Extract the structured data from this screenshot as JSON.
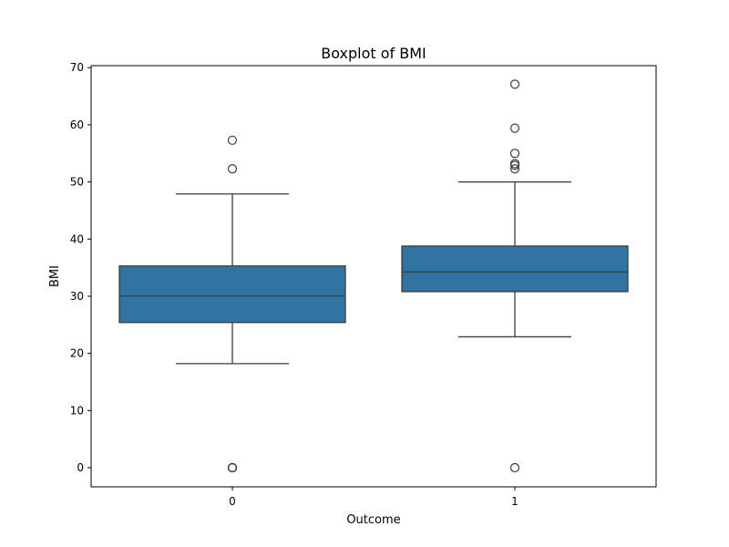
{
  "chart_data": {
    "type": "box",
    "title": "Boxplot of BMI",
    "xlabel": "Outcome",
    "ylabel": "BMI",
    "categories": [
      "0",
      "1"
    ],
    "ylim": [
      -3.35,
      70.35
    ],
    "yticks": [
      0,
      10,
      20,
      30,
      40,
      50,
      60,
      70
    ],
    "grid": false,
    "legend": "none",
    "box_color": "#3274a1",
    "line_color": "#3d3d3d",
    "boxes": [
      {
        "category": "0",
        "whisker_low": 18.2,
        "q1": 25.4,
        "median": 30.05,
        "q3": 35.3,
        "whisker_high": 47.9,
        "outliers": [
          0,
          0,
          0,
          0,
          52.3,
          57.3
        ]
      },
      {
        "category": "1",
        "whisker_low": 22.9,
        "q1": 30.8,
        "median": 34.25,
        "q3": 38.78,
        "whisker_high": 50.0,
        "outliers": [
          0,
          52.3,
          52.9,
          53.2,
          55.0,
          59.4,
          67.1
        ]
      }
    ]
  }
}
